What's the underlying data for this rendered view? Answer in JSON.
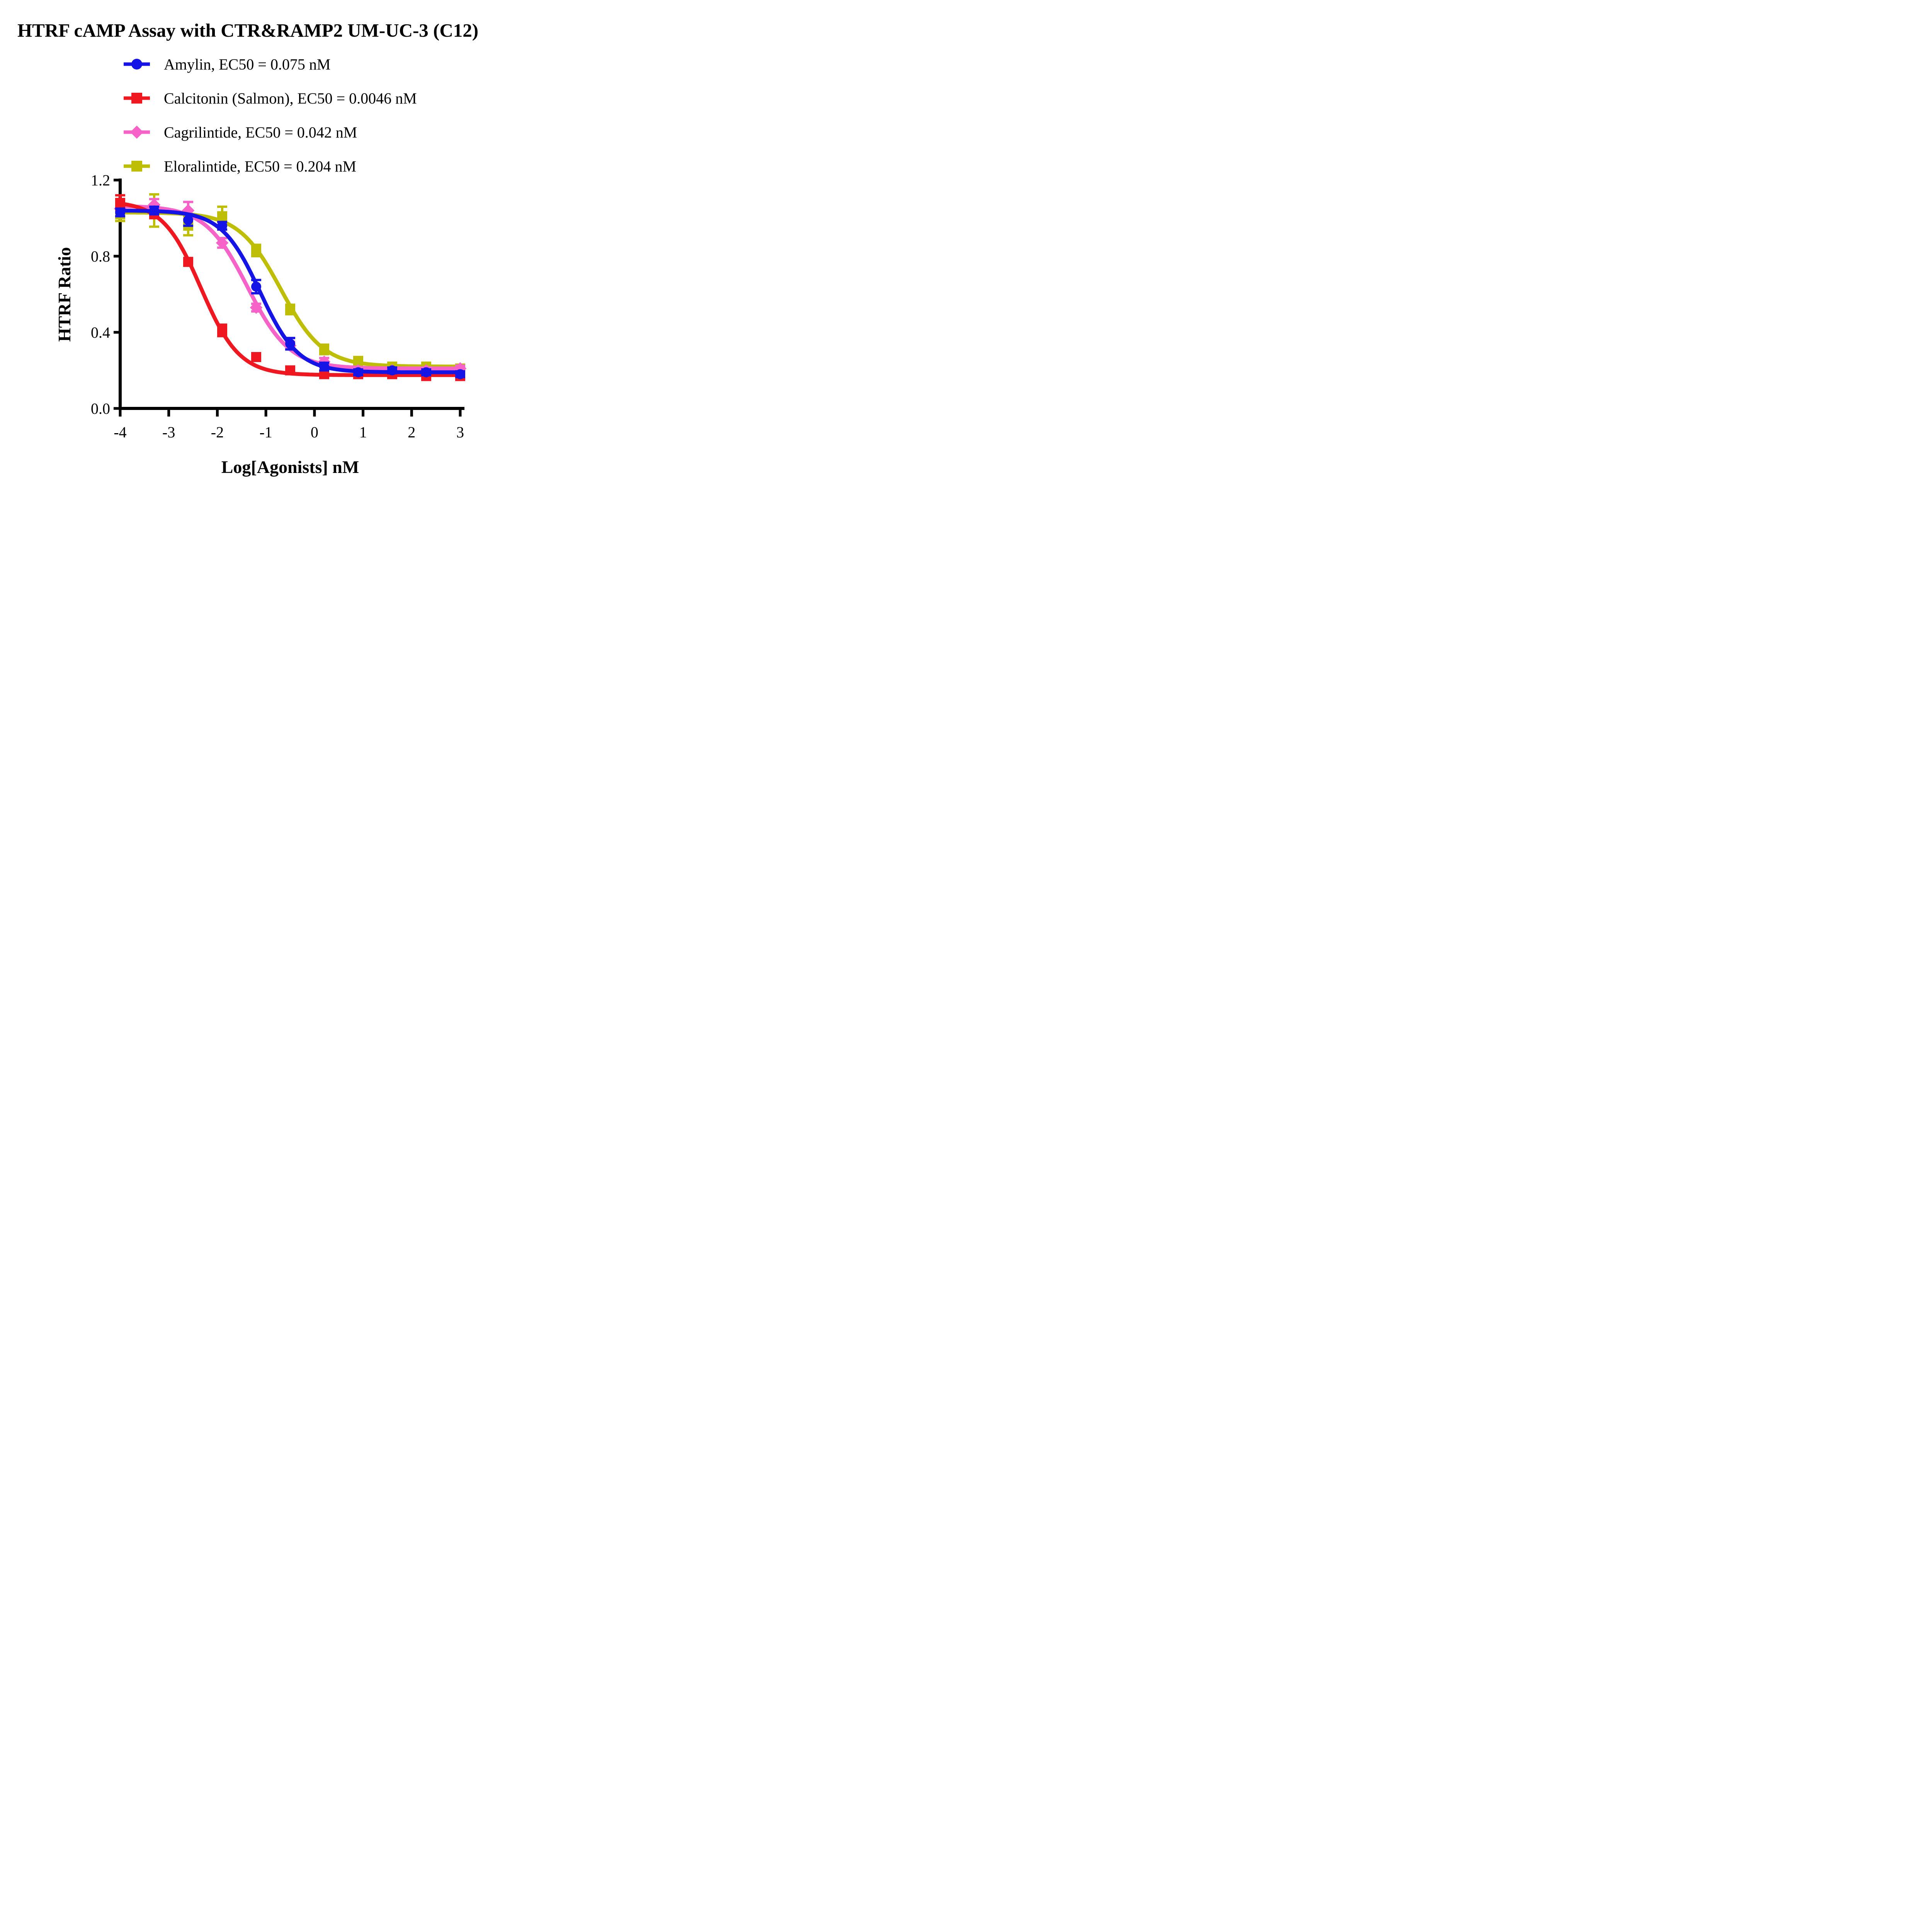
{
  "title": "HTRF cAMP Assay with CTR&RAMP2 UM-UC-3 (C12)",
  "colors": {
    "background": "#FFFFFF",
    "axis": "#000000",
    "text": "#000000"
  },
  "chart_data": {
    "type": "line",
    "xlabel": "Log[Agonists] nM",
    "ylabel": "HTRF Ratio",
    "xlim": [
      -4,
      3
    ],
    "ylim": [
      0.0,
      1.2
    ],
    "grid": false,
    "legend_position": "top-left",
    "x_ticks": [
      -4,
      -3,
      -2,
      -1,
      0,
      1,
      2,
      3
    ],
    "x_tick_labels": [
      "-4",
      "-3",
      "-2",
      "-1",
      "0",
      "1",
      "2",
      "3"
    ],
    "y_ticks": [
      0.0,
      0.4,
      0.8,
      1.2
    ],
    "y_tick_labels": [
      "0.0",
      "0.4",
      "0.8",
      "1.2"
    ],
    "x": [
      -4,
      -3.3,
      -2.6,
      -1.9,
      -1.2,
      -0.5,
      0.2,
      0.9,
      1.6,
      2.3,
      3
    ],
    "series": [
      {
        "name": "Amylin",
        "label": "Amylin, EC50 = 0.075 nM",
        "ec50_nM": 0.075,
        "color": "#1414E6",
        "marker": "circle",
        "values": [
          1.03,
          1.04,
          0.99,
          0.96,
          0.64,
          0.34,
          0.22,
          0.19,
          0.2,
          0.19,
          0.18
        ],
        "errors": [
          0.02,
          0.02,
          0.03,
          0.02,
          0.035,
          0.03,
          0.02,
          0.015,
          0.015,
          0.015,
          0.015
        ],
        "fit": {
          "top": 1.04,
          "bottom": 0.19,
          "log_ec50": -1.125,
          "hill": 1.1
        }
      },
      {
        "name": "Calcitonin (Salmon)",
        "label": "Calcitonin (Salmon), EC50 = 0.0046 nM",
        "ec50_nM": 0.0046,
        "color": "#F01820",
        "marker": "square",
        "values": [
          1.08,
          1.02,
          0.77,
          0.41,
          0.27,
          0.2,
          0.18,
          0.18,
          0.18,
          0.17,
          0.17
        ],
        "errors": [
          0.04,
          0.02,
          0.02,
          0.03,
          0.02,
          0.015,
          0.01,
          0.01,
          0.01,
          0.01,
          0.01
        ],
        "fit": {
          "top": 1.09,
          "bottom": 0.175,
          "log_ec50": -2.337,
          "hill": 1.1
        }
      },
      {
        "name": "Cagrilintide",
        "label": "Cagrilintide, EC50 = 0.042 nM",
        "ec50_nM": 0.042,
        "color": "#F662C8",
        "marker": "diamond",
        "values": [
          1.05,
          1.07,
          1.04,
          0.87,
          0.53,
          0.33,
          0.245,
          0.2,
          0.2,
          0.2,
          0.21
        ],
        "errors": [
          0.02,
          0.03,
          0.045,
          0.025,
          0.02,
          0.02,
          0.02,
          0.015,
          0.015,
          0.015,
          0.015
        ],
        "fit": {
          "top": 1.065,
          "bottom": 0.21,
          "log_ec50": -1.377,
          "hill": 1.0
        }
      },
      {
        "name": "Eloralintide",
        "label": "Eloralintide, EC50 = 0.204 nM",
        "ec50_nM": 0.204,
        "color": "#BEBE06",
        "marker": "square",
        "values": [
          1.02,
          1.04,
          0.96,
          1.01,
          0.83,
          0.52,
          0.31,
          0.25,
          0.22,
          0.22,
          0.21
        ],
        "errors": [
          0.035,
          0.085,
          0.05,
          0.05,
          0.03,
          0.025,
          0.025,
          0.02,
          0.015,
          0.015,
          0.015
        ],
        "fit": {
          "top": 1.03,
          "bottom": 0.22,
          "log_ec50": -0.69,
          "hill": 1.0
        }
      }
    ]
  }
}
